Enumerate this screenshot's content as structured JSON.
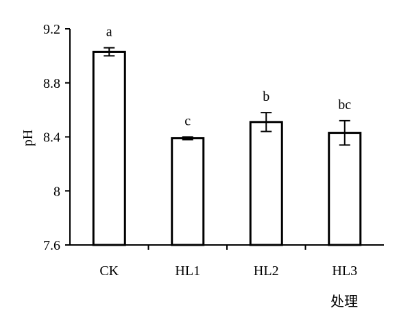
{
  "chart_data": {
    "type": "bar",
    "title": "",
    "xlabel": "处理",
    "ylabel": "pH",
    "ylim": [
      7.6,
      9.2
    ],
    "yticks": [
      "7.6",
      "8",
      "8.4",
      "8.8",
      "9.2"
    ],
    "ytick_values": [
      7.6,
      8.0,
      8.4,
      8.8,
      9.2
    ],
    "categories": [
      "CK",
      "HL1",
      "HL2",
      "HL3"
    ],
    "values": [
      9.03,
      8.39,
      8.51,
      8.43
    ],
    "errors": [
      0.03,
      0.01,
      0.07,
      0.09
    ],
    "significance": [
      "a",
      "c",
      "b",
      "bc"
    ],
    "grid": false,
    "legend": "none",
    "bar_fill": "#ffffff",
    "bar_stroke": "#000000"
  }
}
